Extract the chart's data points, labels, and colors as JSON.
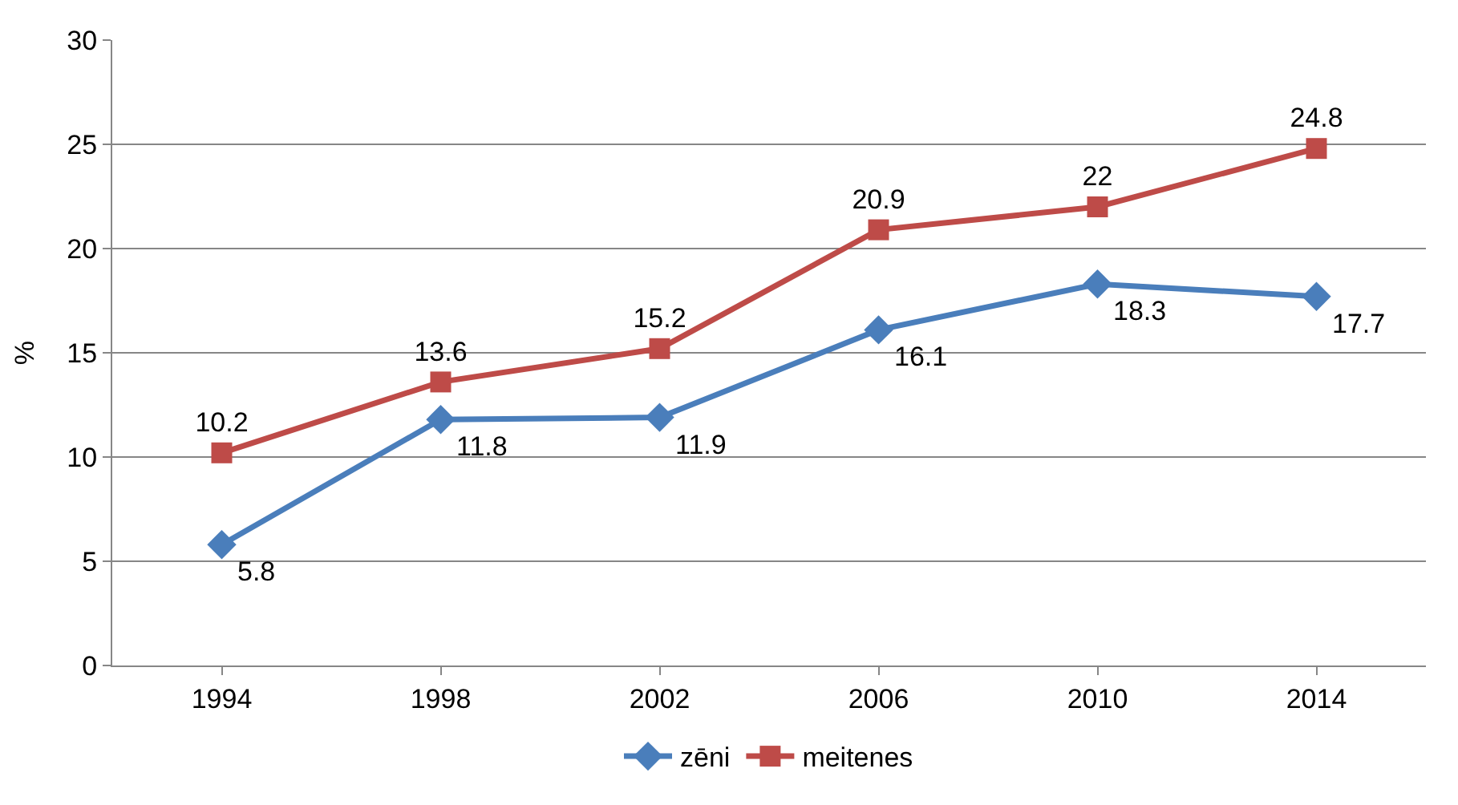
{
  "chart_data": {
    "type": "line",
    "ylabel": "%",
    "categories": [
      "1994",
      "1998",
      "2002",
      "2006",
      "2010",
      "2014"
    ],
    "series": [
      {
        "name": "zēni",
        "color": "#4a7ebb",
        "marker": "diamond",
        "values": [
          5.8,
          11.8,
          11.9,
          16.1,
          18.3,
          17.7
        ]
      },
      {
        "name": "meitenes",
        "color": "#be4b48",
        "marker": "square",
        "values": [
          10.2,
          13.6,
          15.2,
          20.9,
          22,
          24.8
        ]
      }
    ],
    "ylim": [
      0,
      30
    ],
    "yticks": [
      0,
      5,
      10,
      15,
      20,
      25,
      30
    ],
    "grid": "y",
    "legend": "bottom",
    "data_labels": true,
    "line_style": "solid"
  }
}
